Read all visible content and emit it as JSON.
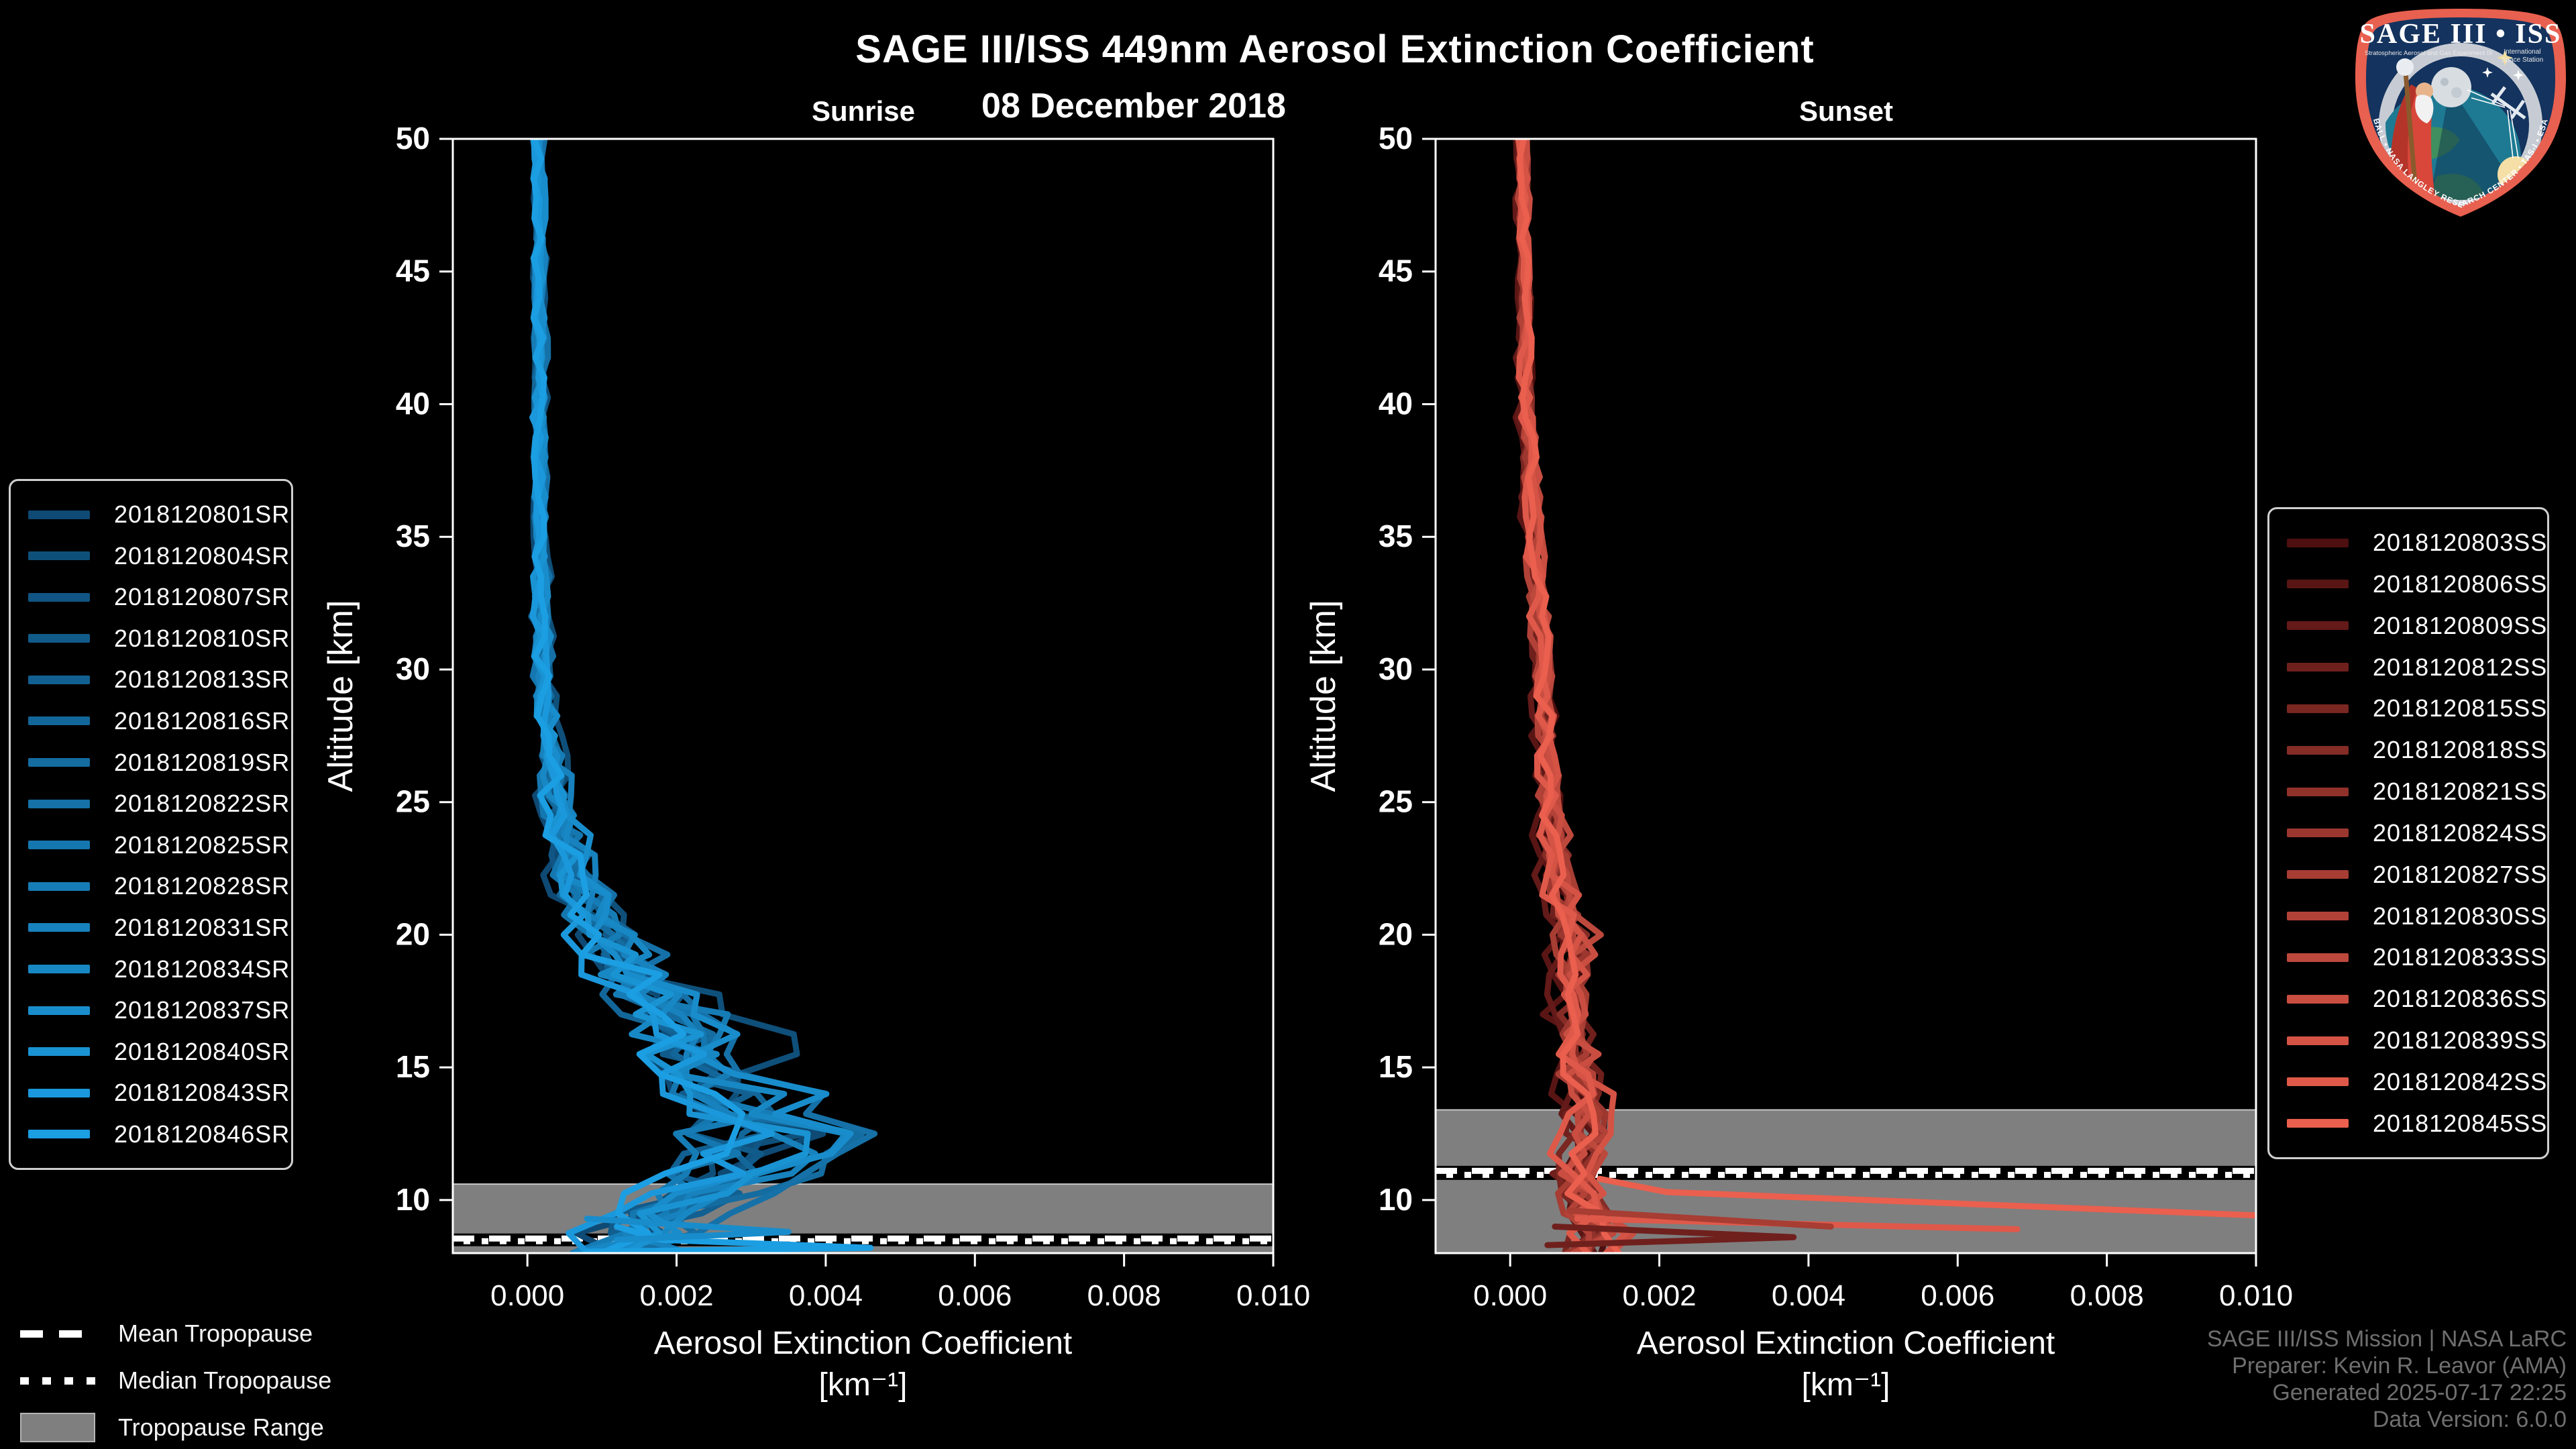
{
  "page": {
    "title": "SAGE III/ISS 449nm Aerosol Extinction Coefficient",
    "subtitle": "08 December 2018"
  },
  "attribution": [
    "SAGE III/ISS Mission | NASA LaRC",
    "Preparer: Kevin R. Leavor (AMA)",
    "Generated 2025-07-17 22:25",
    "Data Version: 6.0.0"
  ],
  "tropopause_legend": {
    "mean_label": "Mean Tropopause",
    "median_label": "Median Tropopause",
    "range_label": "Tropopause Range"
  },
  "logo": {
    "title": "SAGE III • ISS",
    "subtitle_left": "Stratospheric Aerosol and Gas Experiment III",
    "subtitle_right_1": "International",
    "subtitle_right_2": "Space Station",
    "arc_text": "BALL • NASA LANGLEY RESEARCH CENTER • TAS-I • ESA",
    "border_color": "#e8604f",
    "field_color": "#14335e"
  },
  "chart_data": [
    {
      "id": "sunrise",
      "type": "line",
      "title": "Sunrise",
      "xlabel": "Aerosol Extinction Coefficient",
      "xlabel_units": "[km⁻¹]",
      "ylabel": "Altitude [km]",
      "xlim": [
        -0.001,
        0.01
      ],
      "ylim": [
        8,
        50
      ],
      "xticks": [
        0.0,
        0.002,
        0.004,
        0.006,
        0.008,
        0.01
      ],
      "xtick_labels": [
        "0.000",
        "0.002",
        "0.004",
        "0.006",
        "0.008",
        "0.010"
      ],
      "yticks": [
        10,
        15,
        20,
        25,
        30,
        35,
        40,
        45,
        50
      ],
      "grid": false,
      "legend_position": "outside-left",
      "tropopause": {
        "mean_km": 8.55,
        "median_km": 8.45,
        "range_top_km": 10.6,
        "range_bottom_km": 8
      },
      "vertex_step_km": 0.75,
      "mean_profile": [
        [
          50,
          0.00015
        ],
        [
          40,
          0.00017
        ],
        [
          35,
          0.00018
        ],
        [
          30,
          0.0002
        ],
        [
          27,
          0.0003
        ],
        [
          25,
          0.0004
        ],
        [
          22,
          0.0007
        ],
        [
          20,
          0.001
        ],
        [
          18,
          0.0015
        ],
        [
          16,
          0.002
        ],
        [
          14.5,
          0.0022
        ],
        [
          13,
          0.0026
        ],
        [
          12,
          0.0028
        ],
        [
          11,
          0.0024
        ],
        [
          10,
          0.002
        ],
        [
          9,
          0.0015
        ],
        [
          8,
          0.0012
        ]
      ],
      "spread_profile": [
        [
          50,
          8e-05
        ],
        [
          35,
          0.0001
        ],
        [
          30,
          0.00015
        ],
        [
          25,
          0.00025
        ],
        [
          22,
          0.0004
        ],
        [
          20,
          0.0005
        ],
        [
          18,
          0.0007
        ],
        [
          16,
          0.0008
        ],
        [
          14,
          0.0009
        ],
        [
          12,
          0.001
        ],
        [
          10,
          0.0009
        ],
        [
          8,
          0.0009
        ]
      ],
      "series": [
        {
          "name": "2018120801SR",
          "color": "#0E4A74"
        },
        {
          "name": "2018120804SR",
          "color": "#0F507B"
        },
        {
          "name": "2018120807SR",
          "color": "#105583"
        },
        {
          "name": "2018120810SR",
          "color": "#115B8A"
        },
        {
          "name": "2018120813SR",
          "color": "#126091"
        },
        {
          "name": "2018120816SR",
          "color": "#136699"
        },
        {
          "name": "2018120819SR",
          "color": "#146CA0"
        },
        {
          "name": "2018120822SR",
          "color": "#1571A7"
        },
        {
          "name": "2018120825SR",
          "color": "#1577AF"
        },
        {
          "name": "2018120828SR",
          "color": "#167CB6"
        },
        {
          "name": "2018120831SR",
          "color": "#1782BD"
        },
        {
          "name": "2018120834SR",
          "color": "#1888C5"
        },
        {
          "name": "2018120837SR",
          "color": "#198DCC"
        },
        {
          "name": "2018120840SR",
          "color": "#1A93D3"
        },
        {
          "name": "2018120843SR",
          "color": "#1B98DB"
        },
        {
          "name": "2018120846SR",
          "color": "#1C9EE2"
        }
      ],
      "outlier_segments": [
        {
          "series": 15,
          "points": [
            [
              9.0,
              0.0012
            ],
            [
              8.5,
              0.0018
            ],
            [
              8.2,
              0.0046
            ],
            [
              8.05,
              0.0008
            ]
          ]
        },
        {
          "series": 12,
          "points": [
            [
              9.3,
              0.0008
            ],
            [
              8.8,
              0.0035
            ],
            [
              8.5,
              0.0012
            ]
          ]
        }
      ]
    },
    {
      "id": "sunset",
      "type": "line",
      "title": "Sunset",
      "xlabel": "Aerosol Extinction Coefficient",
      "xlabel_units": "[km⁻¹]",
      "ylabel": "Altitude [km]",
      "xlim": [
        -0.001,
        0.01
      ],
      "ylim": [
        8,
        50
      ],
      "xticks": [
        0.0,
        0.002,
        0.004,
        0.006,
        0.008,
        0.01
      ],
      "xtick_labels": [
        "0.000",
        "0.002",
        "0.004",
        "0.006",
        "0.008",
        "0.010"
      ],
      "yticks": [
        10,
        15,
        20,
        25,
        30,
        35,
        40,
        45,
        50
      ],
      "grid": false,
      "legend_position": "outside-right",
      "tropopause": {
        "mean_km": 11.1,
        "median_km": 10.95,
        "range_top_km": 13.4,
        "range_bottom_km": 8
      },
      "vertex_step_km": 0.75,
      "mean_profile": [
        [
          50,
          0.00015
        ],
        [
          40,
          0.0002
        ],
        [
          30,
          0.0004
        ],
        [
          25,
          0.0005
        ],
        [
          22,
          0.0006
        ],
        [
          20,
          0.0008
        ],
        [
          18,
          0.0008
        ],
        [
          16,
          0.0008
        ],
        [
          14,
          0.0009
        ],
        [
          12,
          0.0009
        ],
        [
          11,
          0.0008
        ],
        [
          10,
          0.0009
        ],
        [
          9,
          0.0011
        ],
        [
          8,
          0.001
        ]
      ],
      "spread_profile": [
        [
          50,
          8e-05
        ],
        [
          30,
          0.00015
        ],
        [
          25,
          0.0002
        ],
        [
          22,
          0.00028
        ],
        [
          20,
          0.00035
        ],
        [
          18,
          0.0003
        ],
        [
          16,
          0.0003
        ],
        [
          14,
          0.00035
        ],
        [
          12,
          0.0004
        ],
        [
          10,
          0.00045
        ],
        [
          8,
          0.0005
        ]
      ],
      "series": [
        {
          "name": "2018120803SS",
          "color": "#4D0F0F"
        },
        {
          "name": "2018120806SS",
          "color": "#581514"
        },
        {
          "name": "2018120809SS",
          "color": "#631A18"
        },
        {
          "name": "2018120812SS",
          "color": "#6F201D"
        },
        {
          "name": "2018120815SS",
          "color": "#7A2621"
        },
        {
          "name": "2018120818SS",
          "color": "#852C26"
        },
        {
          "name": "2018120821SS",
          "color": "#90312A"
        },
        {
          "name": "2018120824SS",
          "color": "#9C372F"
        },
        {
          "name": "2018120827SS",
          "color": "#A73D33"
        },
        {
          "name": "2018120830SS",
          "color": "#B24238"
        },
        {
          "name": "2018120833SS",
          "color": "#BD483C"
        },
        {
          "name": "2018120836SS",
          "color": "#C94E41"
        },
        {
          "name": "2018120839SS",
          "color": "#D45345"
        },
        {
          "name": "2018120842SS",
          "color": "#DF594A"
        },
        {
          "name": "2018120845SS",
          "color": "#EA5F4E"
        }
      ],
      "outlier_segments": [
        {
          "series": 14,
          "points": [
            [
              10.8,
              0.0012
            ],
            [
              10.3,
              0.0021
            ],
            [
              9.4,
              0.0102
            ]
          ]
        },
        {
          "series": 13,
          "points": [
            [
              9.3,
              0.0009
            ],
            [
              8.9,
              0.0068
            ]
          ]
        },
        {
          "series": 8,
          "points": [
            [
              9.6,
              0.0008
            ],
            [
              9.0,
              0.0043
            ]
          ]
        },
        {
          "series": 3,
          "points": [
            [
              9.0,
              0.0006
            ],
            [
              8.6,
              0.0038
            ],
            [
              8.3,
              0.0005
            ]
          ]
        }
      ]
    }
  ]
}
